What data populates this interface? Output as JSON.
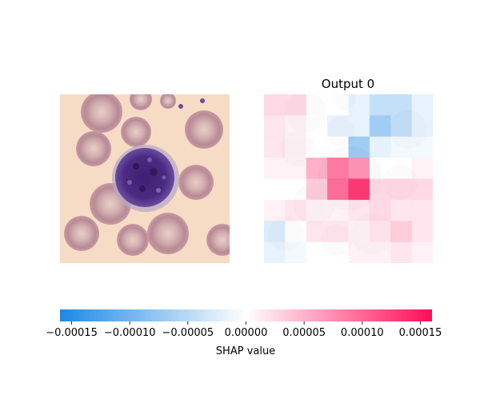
{
  "chart_data": {
    "type": "heatmap",
    "panels": [
      {
        "kind": "input-image",
        "title": ""
      },
      {
        "kind": "shap-heatmap",
        "title": "Output 0",
        "grid_rows": 8,
        "grid_cols": 8,
        "values": [
          [
            3e-05,
            3e-05,
            0.0,
            0.0,
            -2e-05,
            -5e-05,
            -5e-05,
            -2e-05
          ],
          [
            2e-05,
            1e-05,
            0.0,
            -2e-05,
            -2e-05,
            -8e-05,
            -5e-05,
            -2e-05
          ],
          [
            2e-05,
            1e-05,
            0.0,
            0.0,
            -8e-05,
            -2e-05,
            -1e-05,
            -1e-05
          ],
          [
            1e-05,
            1e-05,
            6e-05,
            0.0001,
            8e-05,
            0.0,
            0.0,
            1e-05
          ],
          [
            0.0,
            0.0,
            4e-05,
            0.00011,
            0.00015,
            3e-05,
            3e-05,
            3e-05
          ],
          [
            1e-05,
            2e-05,
            1e-05,
            1e-05,
            2e-05,
            3e-05,
            2e-05,
            2e-05
          ],
          [
            -3e-05,
            0.0,
            2e-05,
            2e-05,
            1e-05,
            2e-05,
            4e-05,
            2e-05
          ],
          [
            -2e-05,
            -1e-05,
            0.0,
            0.0,
            1e-05,
            1e-05,
            2e-05,
            1e-05
          ]
        ]
      }
    ],
    "colorbar": {
      "label": "SHAP value",
      "vmin": -0.00016,
      "vmax": 0.00016,
      "ticks": [
        -0.00015,
        -0.0001,
        -5e-05,
        0,
        5e-05,
        0.0001,
        0.00015
      ],
      "tick_labels": [
        "−0.00015",
        "−0.00010",
        "−0.00005",
        "0.00000",
        "0.00005",
        "0.00010",
        "0.00015"
      ],
      "colors": {
        "negative": "#1e88e5",
        "zero": "#ffffff",
        "positive": "#ff0d57"
      }
    }
  }
}
